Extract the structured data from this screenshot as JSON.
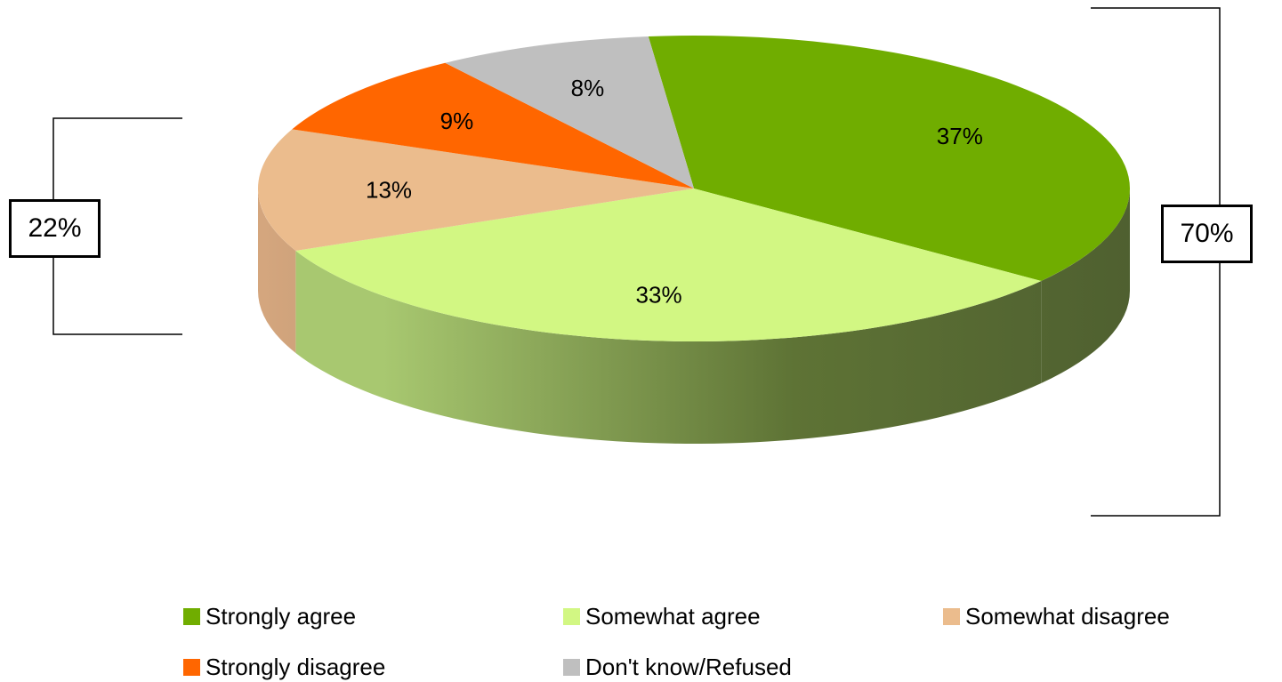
{
  "chart_data": {
    "type": "pie",
    "style": "3d",
    "series": [
      {
        "name": "Strongly agree",
        "value": 37,
        "label": "37%",
        "color": "#70AD00"
      },
      {
        "name": "Somewhat agree",
        "value": 33,
        "label": "33%",
        "color": "#D2F783"
      },
      {
        "name": "Somewhat disagree",
        "value": 13,
        "label": "13%",
        "color": "#EBBC8D"
      },
      {
        "name": "Strongly disagree",
        "value": 9,
        "label": "9%",
        "color": "#FF6600"
      },
      {
        "name": "Don't know/Refused",
        "value": 8,
        "label": "8%",
        "color": "#BFBFBF"
      }
    ],
    "groups": [
      {
        "label": "70%",
        "members": [
          "Strongly agree",
          "Somewhat agree"
        ],
        "side": "right"
      },
      {
        "label": "22%",
        "members": [
          "Somewhat disagree",
          "Strongly disagree"
        ],
        "side": "left"
      }
    ],
    "legend_position": "bottom"
  }
}
